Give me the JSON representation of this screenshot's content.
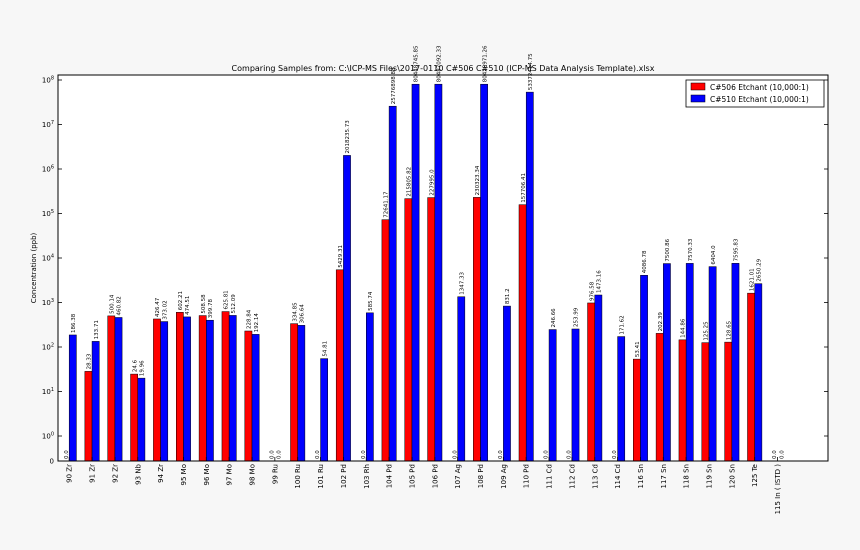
{
  "chart_data": {
    "type": "bar",
    "title": "Comparing Samples from: C:\\ICP-MS Files\\2017-0110 C#506 C#510 (ICP-MS Data Analysis Template).xlsx",
    "xlabel": "",
    "ylabel": "Concentration (ppb)",
    "yscale": "symlog",
    "ylim": [
      0,
      100000000
    ],
    "y_ticks": [
      "0",
      "10^0",
      "10^1",
      "10^2",
      "10^3",
      "10^4",
      "10^5",
      "10^6",
      "10^7",
      "10^8"
    ],
    "legend_position": "top-right",
    "categories": [
      "90  Zr",
      "91  Zr",
      "92  Zr",
      "93  Nb",
      "94  Zr",
      "95  Mo",
      "96  Mo",
      "97  Mo",
      "98  Mo",
      "99  Ru",
      "100  Ru",
      "101  Ru",
      "102  Pd",
      "103  Rh",
      "104  Pd",
      "105  Pd",
      "106  Pd",
      "107  Ag",
      "108  Pd",
      "109  Ag",
      "110  Pd",
      "111  Cd",
      "112  Cd",
      "113  Cd",
      "114  Cd",
      "116  Sn",
      "117  Sn",
      "118  Sn",
      "119  Sn",
      "120  Sn",
      "125  Te",
      "115  In  ( ISTD )"
    ],
    "series": [
      {
        "name": "C#506 Etchant (10,000:1)",
        "color": "#ff0000",
        "values": [
          0.0,
          28.33,
          500.14,
          24.6,
          426.47,
          602.21,
          508.58,
          625.81,
          228.84,
          0.0,
          334.85,
          0.0,
          5429.31,
          0.0,
          72641.17,
          215805.82,
          227995.0,
          0.0,
          230323.34,
          0.0,
          157706.41,
          0.0,
          0.0,
          976.58,
          0.0,
          53.41,
          202.39,
          144.86,
          125.25,
          128.65,
          1621.01,
          0.0
        ],
        "labels": [
          "0.0",
          "28.33",
          "500.14",
          "24.6",
          "426.47",
          "602.21",
          "508.58",
          "625.81",
          "228.84",
          "0.0",
          "334.85",
          "0.0",
          "5429.31",
          "0.0",
          "72641.17",
          "215805.82",
          "227995.0",
          "0.0",
          "230323.34",
          "0.0",
          "157706.41",
          "0.0",
          "0.0",
          "976.58",
          "0.0",
          "53.41",
          "202.39",
          "144.86",
          "125.25",
          "128.65",
          "1621.01",
          "0.0"
        ]
      },
      {
        "name": "C#510 Etchant (10,000:1)",
        "color": "#0000ff",
        "values": [
          186.38,
          133.71,
          460.82,
          19.96,
          373.02,
          474.51,
          399.78,
          512.09,
          192.14,
          0.0,
          306.64,
          54.81,
          2018235.73,
          585.74,
          25776898.88,
          80448745.85,
          80487092.33,
          1347.33,
          80428971.26,
          831.2,
          53372414.75,
          246.66,
          253.99,
          1473.16,
          171.62,
          4086.78,
          7500.86,
          7570.33,
          6404.0,
          7595.83,
          2650.29,
          0.0
        ],
        "labels": [
          "186.38",
          "133.71",
          "460.82",
          "19.96",
          "373.02",
          "474.51",
          "399.78",
          "512.09",
          "192.14",
          "0.0",
          "306.64",
          "54.81",
          "2018235.73",
          "585.74",
          "25776898.88",
          "80448745.85",
          "80487092.33",
          "1347.33",
          "80428971.26",
          "831.2",
          "53372414.75",
          "246.66",
          "253.99",
          "1473.16",
          "171.62",
          "4086.78",
          "7500.86",
          "7570.33",
          "6404.0",
          "7595.83",
          "2650.29",
          "0.0"
        ]
      }
    ]
  }
}
